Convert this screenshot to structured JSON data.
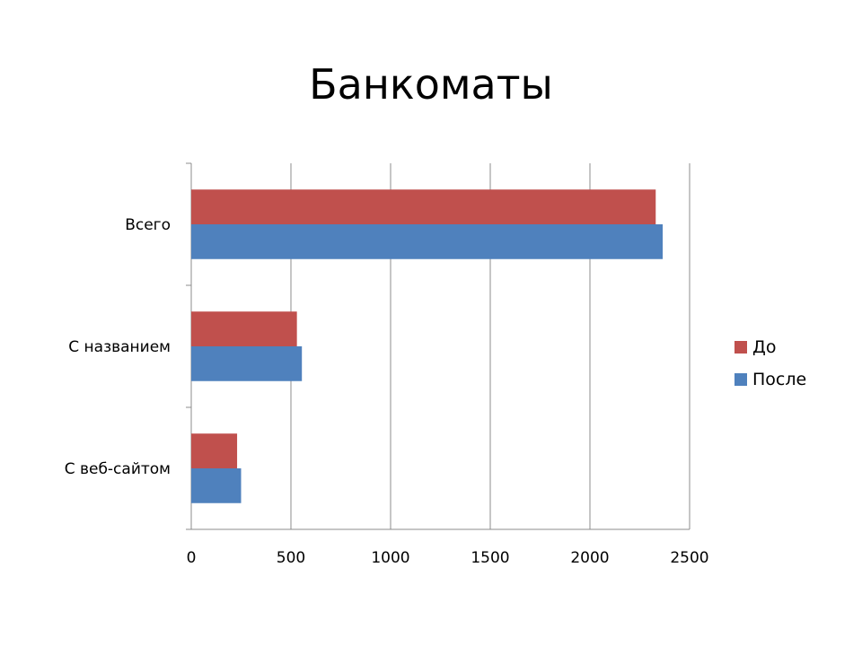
{
  "chart_data": {
    "type": "bar",
    "orientation": "horizontal",
    "title": "Банкоматы",
    "categories": [
      "Всего",
      "С названием",
      "С веб-сайтом"
    ],
    "series": [
      {
        "name": "До",
        "values": [
          2330,
          530,
          230
        ],
        "color": "#C0504D"
      },
      {
        "name": "После",
        "values": [
          2365,
          555,
          250
        ],
        "color": "#4F81BD"
      }
    ],
    "xlim": [
      0,
      2500
    ],
    "x_ticks": [
      "0",
      "500",
      "1000",
      "1500",
      "2000",
      "2500"
    ],
    "grid": "vertical",
    "legend_position": "right"
  }
}
